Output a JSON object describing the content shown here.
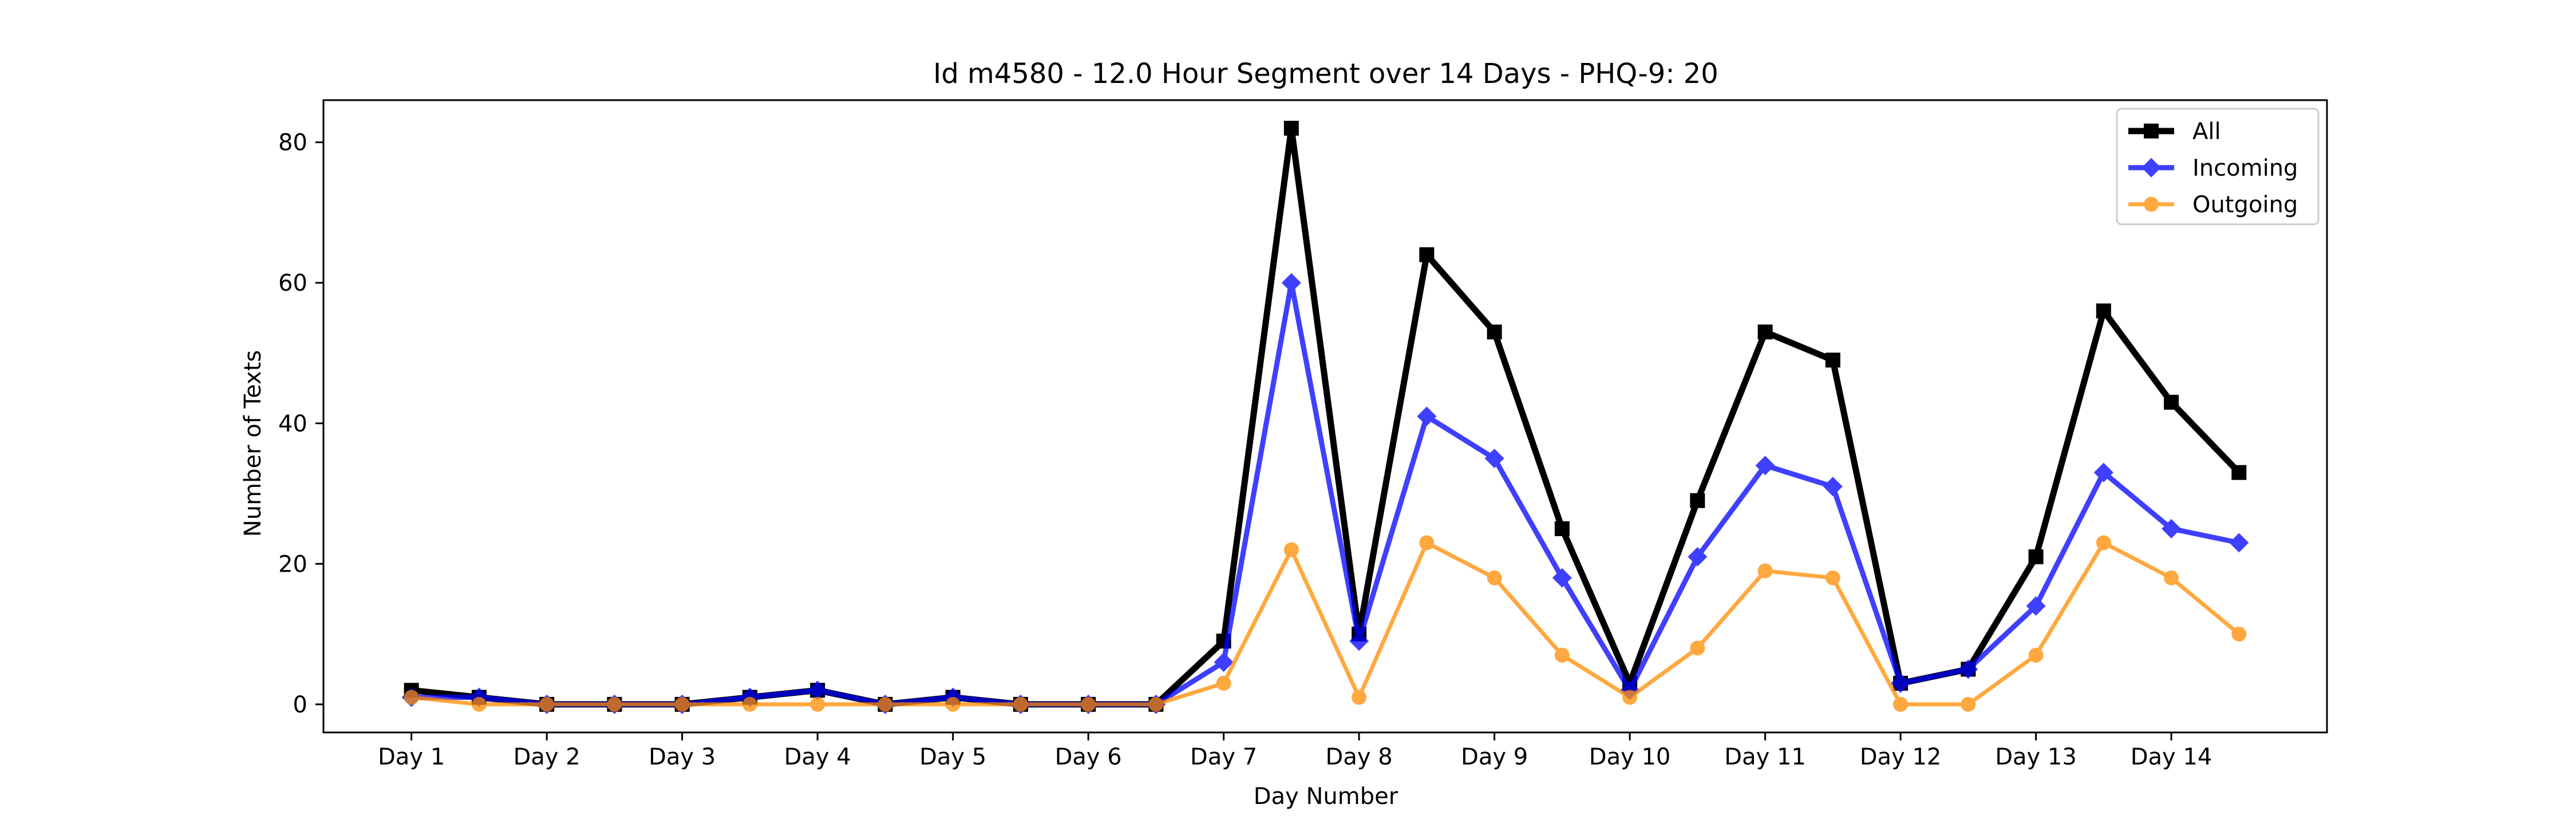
{
  "chart_data": {
    "type": "line",
    "title": "Id m4580 - 12.0 Hour Segment over 14 Days - PHQ-9: 20",
    "xlabel": "Day Number",
    "ylabel": "Number of Texts",
    "ylim": [
      -4,
      86
    ],
    "yticks": [
      0,
      20,
      40,
      60,
      80
    ],
    "xticks": [
      "Day 1",
      "Day 2",
      "Day 3",
      "Day 4",
      "Day 5",
      "Day 6",
      "Day 7",
      "Day 8",
      "Day 9",
      "Day 10",
      "Day 11",
      "Day 12",
      "Day 13",
      "Day 14"
    ],
    "x": [
      0,
      0.5,
      1,
      1.5,
      2,
      2.5,
      3,
      3.5,
      4,
      4.5,
      5,
      5.5,
      6,
      6.5,
      7,
      7.5,
      8,
      8.5,
      9,
      9.5,
      10,
      10.5,
      11,
      11.5,
      12,
      12.5,
      13,
      13.5
    ],
    "grid": false,
    "legend_position": "top-right",
    "series": [
      {
        "name": "All",
        "color": "#000000",
        "marker": "square",
        "values": [
          2,
          1,
          0,
          0,
          0,
          1,
          2,
          0,
          1,
          0,
          0,
          0,
          9,
          82,
          10,
          64,
          53,
          25,
          3,
          29,
          53,
          49,
          3,
          5,
          21,
          56,
          43,
          33
        ]
      },
      {
        "name": "Incoming",
        "color": "#0000ff",
        "marker": "diamond",
        "values": [
          1,
          1,
          0,
          0,
          0,
          1,
          2,
          0,
          1,
          0,
          0,
          0,
          6,
          60,
          9,
          41,
          35,
          18,
          2,
          21,
          34,
          31,
          3,
          5,
          14,
          33,
          25,
          23
        ]
      },
      {
        "name": "Outgoing",
        "color": "#ff8c00",
        "marker": "circle",
        "values": [
          1,
          0,
          0,
          0,
          0,
          0,
          0,
          0,
          0,
          0,
          0,
          0,
          3,
          22,
          1,
          23,
          18,
          7,
          1,
          8,
          19,
          18,
          0,
          0,
          7,
          23,
          18,
          10
        ]
      }
    ]
  }
}
